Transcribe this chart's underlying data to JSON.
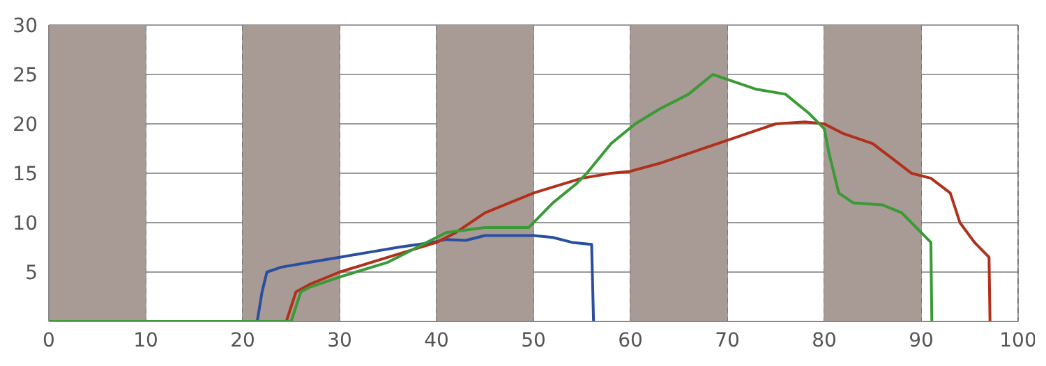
{
  "chart_data": {
    "type": "line",
    "xlim": [
      0,
      100
    ],
    "xticks": [
      0,
      10,
      20,
      30,
      40,
      50,
      60,
      70,
      80,
      90,
      100
    ],
    "ylim": [
      0,
      30
    ],
    "yticks": [
      5,
      10,
      15,
      20,
      25,
      30
    ],
    "grid": true,
    "legend": false,
    "marker": "none",
    "line_style": "solid",
    "bands": [
      {
        "axis": "x",
        "from": 0,
        "to": 10,
        "color": "#a89a94"
      },
      {
        "axis": "x",
        "from": 20,
        "to": 30,
        "color": "#a89a94"
      },
      {
        "axis": "x",
        "from": 40,
        "to": 50,
        "color": "#a89a94"
      },
      {
        "axis": "x",
        "from": 60,
        "to": 70,
        "color": "#a89a94"
      },
      {
        "axis": "x",
        "from": 80,
        "to": 90,
        "color": "#a89a94"
      }
    ],
    "series": [
      {
        "color": "#2a4f9e",
        "x": [
          0,
          21.5,
          22,
          22.5,
          24,
          27,
          30,
          33,
          36,
          39.5,
          41,
          43,
          45,
          50,
          52,
          54,
          56,
          56.2
        ],
        "values": [
          0,
          0,
          3,
          5,
          5.5,
          6,
          6.5,
          7,
          7.5,
          8,
          8.3,
          8.2,
          8.7,
          8.7,
          8.5,
          8,
          7.8,
          0
        ]
      },
      {
        "color": "#b0301c",
        "x": [
          0,
          24.5,
          25.5,
          27,
          30,
          35,
          40,
          42,
          45,
          50,
          55,
          58,
          60,
          63,
          66,
          69,
          72,
          75,
          78,
          80,
          82,
          85,
          87,
          89,
          91,
          93,
          94,
          95.5,
          97,
          97.1
        ],
        "values": [
          0,
          0,
          3,
          3.8,
          5,
          6.5,
          8,
          9,
          11,
          13,
          14.5,
          15,
          15.2,
          16,
          17,
          18,
          19,
          20,
          20.2,
          20,
          19,
          18,
          16.5,
          15,
          14.5,
          13,
          10,
          8,
          6.5,
          0
        ]
      },
      {
        "color": "#3a9a35",
        "x": [
          0,
          25,
          26,
          27,
          30,
          35,
          39,
          41,
          45,
          49.5,
          52,
          54.5,
          55.5,
          58,
          60.5,
          63,
          66,
          68.5,
          70,
          73,
          76,
          78.5,
          80,
          80.5,
          81.5,
          83,
          86,
          88,
          90,
          91,
          91.1
        ],
        "values": [
          0,
          0,
          3,
          3.5,
          4.5,
          6,
          8,
          9,
          9.5,
          9.5,
          12,
          14,
          15,
          18,
          20,
          21.5,
          23,
          25,
          24.5,
          23.5,
          23,
          21,
          19.5,
          17,
          13,
          12,
          11.8,
          11,
          9,
          8,
          0
        ]
      }
    ]
  }
}
